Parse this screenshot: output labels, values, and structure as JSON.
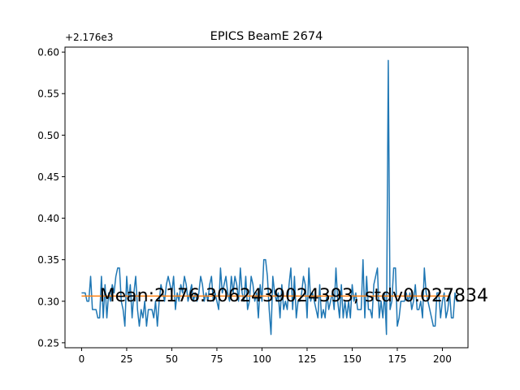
{
  "chart_data": {
    "type": "line",
    "title": "EPICS BeamE 2674",
    "xlabel": "",
    "ylabel": "",
    "y_offset_label": "+2.176e3",
    "xlim": [
      -9.2,
      214.2
    ],
    "ylim": [
      0.244,
      0.606
    ],
    "x_ticks": [
      0,
      25,
      50,
      75,
      100,
      125,
      150,
      175,
      200
    ],
    "y_ticks": [
      0.25,
      0.3,
      0.35,
      0.4,
      0.45,
      0.5,
      0.55,
      0.6
    ],
    "y_tick_labels": [
      "0.25",
      "0.30",
      "0.35",
      "0.40",
      "0.45",
      "0.50",
      "0.55",
      "0.60"
    ],
    "grid": false,
    "series": [
      {
        "color": "#1f77b4",
        "x_start": 0,
        "values": [
          0.31,
          0.31,
          0.31,
          0.3,
          0.3,
          0.33,
          0.29,
          0.29,
          0.29,
          0.28,
          0.28,
          0.33,
          0.28,
          0.32,
          0.28,
          0.31,
          0.3,
          0.32,
          0.31,
          0.33,
          0.34,
          0.34,
          0.3,
          0.29,
          0.27,
          0.33,
          0.3,
          0.32,
          0.28,
          0.31,
          0.33,
          0.29,
          0.27,
          0.29,
          0.28,
          0.3,
          0.27,
          0.29,
          0.29,
          0.29,
          0.28,
          0.3,
          0.27,
          0.3,
          0.32,
          0.31,
          0.3,
          0.32,
          0.33,
          0.32,
          0.31,
          0.33,
          0.29,
          0.31,
          0.3,
          0.32,
          0.31,
          0.33,
          0.32,
          0.3,
          0.31,
          0.32,
          0.3,
          0.31,
          0.3,
          0.31,
          0.33,
          0.32,
          0.3,
          0.31,
          0.3,
          0.32,
          0.33,
          0.3,
          0.31,
          0.3,
          0.29,
          0.34,
          0.31,
          0.32,
          0.33,
          0.31,
          0.3,
          0.33,
          0.31,
          0.33,
          0.32,
          0.3,
          0.34,
          0.31,
          0.3,
          0.33,
          0.29,
          0.3,
          0.33,
          0.32,
          0.3,
          0.31,
          0.28,
          0.32,
          0.3,
          0.35,
          0.35,
          0.33,
          0.29,
          0.26,
          0.33,
          0.31,
          0.3,
          0.31,
          0.28,
          0.32,
          0.29,
          0.3,
          0.29,
          0.32,
          0.34,
          0.29,
          0.33,
          0.28,
          0.3,
          0.3,
          0.31,
          0.33,
          0.32,
          0.28,
          0.34,
          0.3,
          0.31,
          0.3,
          0.29,
          0.28,
          0.32,
          0.28,
          0.29,
          0.28,
          0.31,
          0.29,
          0.3,
          0.31,
          0.29,
          0.34,
          0.3,
          0.28,
          0.32,
          0.28,
          0.3,
          0.28,
          0.3,
          0.28,
          0.32,
          0.3,
          0.31,
          0.29,
          0.29,
          0.29,
          0.35,
          0.28,
          0.33,
          0.29,
          0.29,
          0.28,
          0.32,
          0.33,
          0.34,
          0.28,
          0.3,
          0.28,
          0.31,
          0.26,
          0.59,
          0.29,
          0.3,
          0.34,
          0.34,
          0.27,
          0.28,
          0.3,
          0.3,
          0.3,
          0.31,
          0.3,
          0.31,
          0.29,
          0.3,
          0.32,
          0.29,
          0.29,
          0.3,
          0.28,
          0.34,
          0.31,
          0.3,
          0.29,
          0.28,
          0.27,
          0.27,
          0.31,
          0.31,
          0.28,
          0.3,
          0.31,
          0.28,
          0.29,
          0.31,
          0.28,
          0.28,
          0.31,
          0.3,
          0.3
        ]
      },
      {
        "color": "#ff7f0e",
        "x": [
          0,
          204
        ],
        "values": [
          0.3062439024393,
          0.3062439024393
        ]
      }
    ],
    "annotation": {
      "text": "Mean:2176.3062439024393, stdv0.027834",
      "x": 10,
      "y": 0.3
    }
  }
}
